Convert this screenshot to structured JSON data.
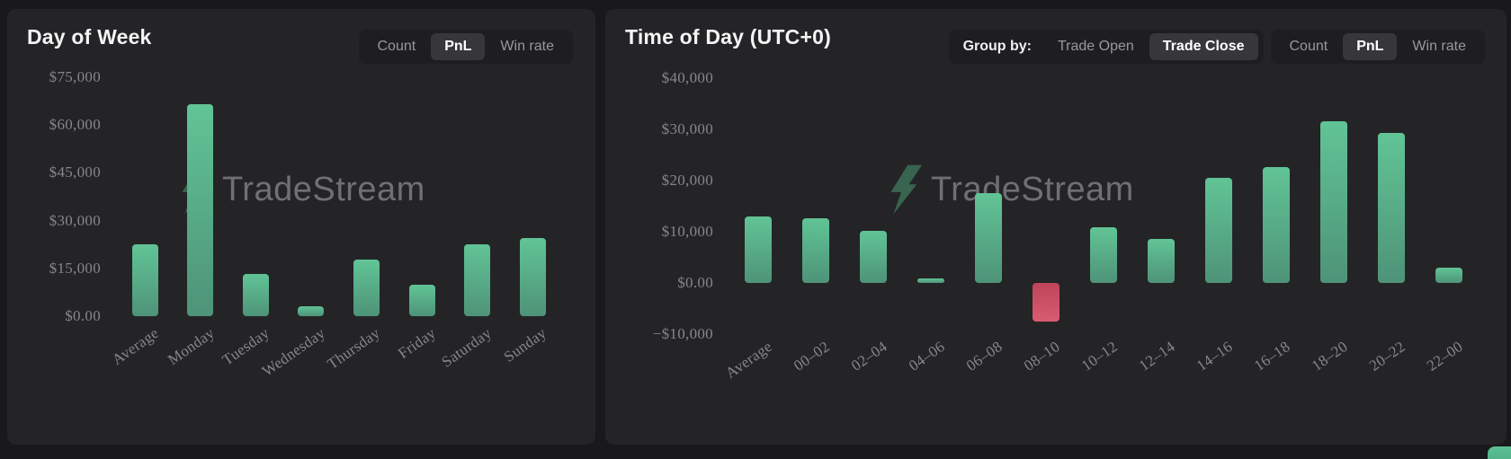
{
  "watermark": {
    "text": "TradeStream",
    "icon": "tradestream-logo-icon"
  },
  "panels": {
    "left": {
      "title": "Day of Week",
      "metric_toggle": {
        "options": [
          "Count",
          "PnL",
          "Win rate"
        ],
        "selected": "PnL"
      }
    },
    "right": {
      "title": "Time of Day (UTC+0)",
      "group_by_label": "Group by:",
      "group_toggle": {
        "options": [
          "Trade Open",
          "Trade Close"
        ],
        "selected": "Trade Close"
      },
      "metric_toggle": {
        "options": [
          "Count",
          "PnL",
          "Win rate"
        ],
        "selected": "PnL"
      }
    }
  },
  "colors": {
    "page_bg": "#19191b",
    "panel_bg": "#242427",
    "control_bg": "#1e1e21",
    "control_selected_bg": "#37373b",
    "positive_bar_top": "#61c496",
    "positive_bar_bottom": "#4e9378",
    "negative_bar_top": "#bf4459",
    "negative_bar_bottom": "#d95c71",
    "axis_label": "#87878b",
    "watermark_text": "#707074",
    "watermark_icon": "#3c6b54"
  },
  "chart_data": [
    {
      "type": "bar",
      "title": "Day of Week",
      "metric": "PnL",
      "categories": [
        "Average",
        "Monday",
        "Tuesday",
        "Wednesday",
        "Thursday",
        "Friday",
        "Saturday",
        "Sunday"
      ],
      "values": [
        22500,
        66500,
        13200,
        3000,
        17800,
        9900,
        22500,
        24500
      ],
      "ylim": [
        0,
        75000
      ],
      "grid": false,
      "legend": "none",
      "yticks": [
        {
          "value": 75000,
          "label": "$75,000"
        },
        {
          "value": 60000,
          "label": "$60,000"
        },
        {
          "value": 45000,
          "label": "$45,000"
        },
        {
          "value": 30000,
          "label": "$30,000"
        },
        {
          "value": 15000,
          "label": "$15,000"
        },
        {
          "value": 0,
          "label": "$0.00"
        }
      ]
    },
    {
      "type": "bar",
      "title": "Time of Day (UTC+0)",
      "metric": "PnL",
      "categories": [
        "Average",
        "00–02",
        "02–04",
        "04–06",
        "06–08",
        "08–10",
        "10–12",
        "12–14",
        "14–16",
        "16–18",
        "18–20",
        "20–22",
        "22–00"
      ],
      "values": [
        13000,
        12600,
        10200,
        900,
        17500,
        -7600,
        10800,
        8600,
        20500,
        22600,
        31500,
        29300,
        3000
      ],
      "ylim": [
        -10000,
        40000
      ],
      "grid": false,
      "legend": "none",
      "yticks": [
        {
          "value": 40000,
          "label": "$40,000"
        },
        {
          "value": 30000,
          "label": "$30,000"
        },
        {
          "value": 20000,
          "label": "$20,000"
        },
        {
          "value": 10000,
          "label": "$10,000"
        },
        {
          "value": 0,
          "label": "$0.00"
        },
        {
          "value": -10000,
          "label": "−$10,000"
        }
      ]
    }
  ]
}
